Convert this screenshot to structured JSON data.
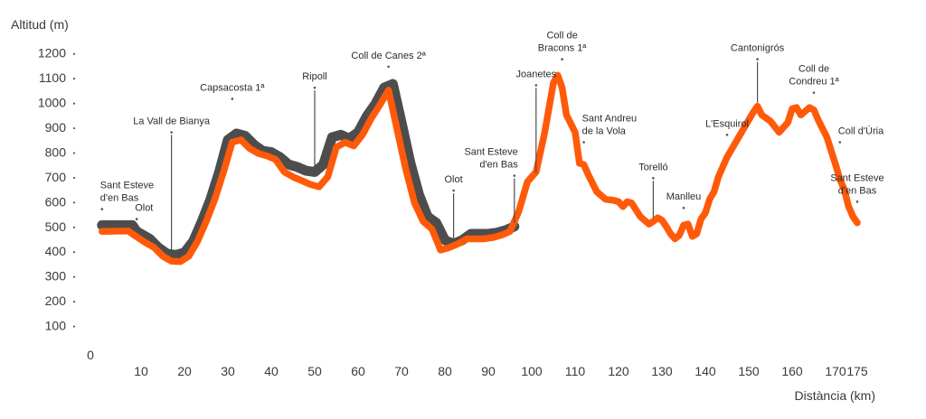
{
  "chart_data": {
    "type": "line",
    "ylabel": "Altitud (m)",
    "xlabel": "Distància (km)",
    "xlim": [
      0,
      175
    ],
    "ylim": [
      0,
      1200
    ],
    "x_origin_label": "0",
    "xticks": [
      10,
      20,
      30,
      40,
      50,
      60,
      70,
      80,
      90,
      100,
      110,
      120,
      130,
      140,
      150,
      160,
      170,
      175
    ],
    "yticks": [
      100,
      200,
      300,
      400,
      500,
      600,
      700,
      800,
      900,
      1000,
      1100,
      1200
    ],
    "colors": {
      "shadow": "#4d4d4d",
      "route": "#ff5a0a",
      "text": "#3a3a3a"
    },
    "series": [
      {
        "name": "shadow",
        "x": [
          1,
          8,
          9,
          12,
          14,
          16,
          18,
          20,
          22,
          24,
          26,
          28,
          30,
          32,
          34,
          36,
          38,
          40,
          42,
          44,
          46,
          48,
          50,
          52,
          54,
          56,
          58,
          60,
          62,
          64,
          66,
          68,
          70,
          72,
          74,
          76,
          78,
          80,
          82,
          84,
          86,
          88,
          90,
          92,
          94,
          96
        ],
        "values": [
          505,
          505,
          480,
          450,
          415,
          390,
          385,
          395,
          440,
          520,
          610,
          720,
          850,
          875,
          865,
          830,
          805,
          800,
          780,
          750,
          740,
          725,
          720,
          750,
          860,
          870,
          855,
          880,
          945,
          995,
          1060,
          1075,
          920,
          760,
          630,
          540,
          515,
          445,
          430,
          445,
          470,
          470,
          470,
          475,
          485,
          500
        ]
      },
      {
        "name": "route",
        "x": [
          1,
          7,
          8,
          11,
          13,
          15,
          17,
          19,
          21,
          23,
          25,
          27,
          29,
          31,
          33,
          35,
          37,
          39,
          41,
          43,
          45,
          47,
          49,
          51,
          53,
          55,
          57,
          59,
          61,
          63,
          65,
          67,
          69,
          71,
          73,
          75,
          77,
          79,
          81,
          83,
          85,
          87,
          89,
          91,
          93,
          95,
          97,
          99,
          101,
          103,
          105,
          106,
          107,
          108,
          110,
          111,
          112,
          113,
          115,
          117,
          119,
          120,
          121,
          122,
          123,
          125,
          127,
          128,
          129,
          130,
          131,
          132,
          133,
          134,
          135,
          136,
          137,
          138,
          139,
          140,
          141,
          142,
          143,
          145,
          147,
          149,
          151,
          152,
          153,
          155,
          157,
          159,
          160,
          161,
          162,
          163,
          164,
          165,
          166,
          168,
          170,
          171,
          172,
          173,
          174,
          175
        ],
        "values": [
          480,
          482,
          470,
          435,
          415,
          380,
          360,
          358,
          380,
          440,
          520,
          610,
          720,
          840,
          850,
          815,
          795,
          785,
          770,
          720,
          700,
          685,
          670,
          660,
          700,
          820,
          840,
          825,
          870,
          935,
          990,
          1050,
          890,
          730,
          595,
          520,
          490,
          405,
          415,
          430,
          450,
          450,
          450,
          455,
          465,
          480,
          560,
          680,
          720,
          880,
          1080,
          1110,
          1060,
          950,
          880,
          755,
          750,
          710,
          640,
          610,
          605,
          600,
          580,
          600,
          595,
          540,
          510,
          520,
          535,
          525,
          500,
          470,
          450,
          465,
          505,
          510,
          460,
          470,
          530,
          555,
          610,
          640,
          700,
          780,
          840,
          900,
          960,
          985,
          950,
          925,
          880,
          920,
          975,
          980,
          950,
          965,
          980,
          970,
          930,
          860,
          750,
          690,
          650,
          580,
          540,
          515
        ]
      }
    ],
    "annotations": [
      {
        "lines": [
          "Sant Esteve",
          "d'en Bas"
        ],
        "x": 1,
        "y": 505,
        "label_alt": 570,
        "leader": false,
        "anchor": "start"
      },
      {
        "lines": [
          "Olot"
        ],
        "x": 9,
        "y": 505,
        "label_alt": 530,
        "leader": false,
        "anchor": "start"
      },
      {
        "lines": [
          "La Vall de Bianya"
        ],
        "x": 17,
        "y": 385,
        "label_alt": 880,
        "leader": true,
        "anchor": "middle"
      },
      {
        "lines": [
          "Capsacosta 1ª"
        ],
        "x": 31,
        "y": 875,
        "label_alt": 1015,
        "leader": false,
        "anchor": "middle"
      },
      {
        "lines": [
          "Ripoll"
        ],
        "x": 50,
        "y": 720,
        "label_alt": 1060,
        "leader": true,
        "anchor": "middle"
      },
      {
        "lines": [
          "Coll de Canes 2ª"
        ],
        "x": 67,
        "y": 1075,
        "label_alt": 1145,
        "leader": false,
        "anchor": "middle"
      },
      {
        "lines": [
          "Olot"
        ],
        "x": 82,
        "y": 430,
        "label_alt": 645,
        "leader": true,
        "anchor": "middle"
      },
      {
        "lines": [
          "Sant Esteve",
          "d'en Bas"
        ],
        "x": 96,
        "y": 500,
        "label_alt": 705,
        "leader": true,
        "anchor": "end"
      },
      {
        "lines": [
          "Joanetes"
        ],
        "x": 101,
        "y": 700,
        "label_alt": 1070,
        "leader": true,
        "anchor": "middle"
      },
      {
        "lines": [
          "Coll de",
          "Bracons 1ª"
        ],
        "x": 107,
        "y": 1110,
        "label_alt": 1175,
        "leader": false,
        "anchor": "middle"
      },
      {
        "lines": [
          "Sant Andreu",
          "de la Vola"
        ],
        "x": 112,
        "y": 755,
        "label_alt": 840,
        "leader": false,
        "anchor": "start"
      },
      {
        "lines": [
          "Torelló"
        ],
        "x": 128,
        "y": 520,
        "label_alt": 695,
        "leader": true,
        "anchor": "middle"
      },
      {
        "lines": [
          "Manlleu"
        ],
        "x": 135,
        "y": 505,
        "label_alt": 575,
        "leader": false,
        "anchor": "middle"
      },
      {
        "lines": [
          "L'Esquirol"
        ],
        "x": 145,
        "y": 785,
        "label_alt": 870,
        "leader": false,
        "anchor": "middle"
      },
      {
        "lines": [
          "Cantonigrós"
        ],
        "x": 152,
        "y": 985,
        "label_alt": 1175,
        "leader": true,
        "anchor": "middle"
      },
      {
        "lines": [
          "Coll de",
          "Condreu 1ª"
        ],
        "x": 165,
        "y": 980,
        "label_alt": 1040,
        "leader": false,
        "anchor": "middle"
      },
      {
        "lines": [
          "Coll d'Úria"
        ],
        "x": 171,
        "y": 780,
        "label_alt": 840,
        "leader": false,
        "anchor": "start"
      },
      {
        "lines": [
          "Sant Esteve",
          "d'en Bas"
        ],
        "x": 175,
        "y": 545,
        "label_alt": 600,
        "leader": false,
        "anchor": "middle"
      }
    ]
  }
}
